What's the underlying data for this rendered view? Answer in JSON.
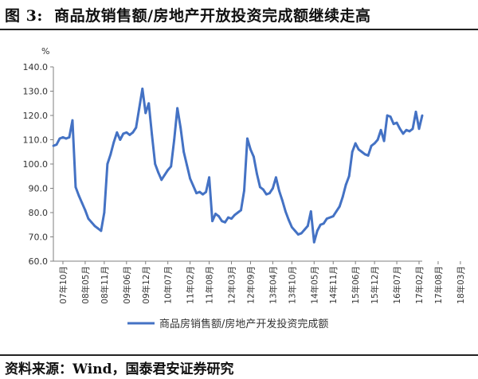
{
  "header": {
    "figure_label": "图 3:",
    "title": "商品放销售额/房地产开放投资完成额继续走高"
  },
  "footer": {
    "source": "资料来源：Wind，国泰君安证券研究"
  },
  "colors": {
    "series": "#4472C4",
    "axis": "#7f7f7f"
  },
  "chart_data": {
    "type": "line",
    "title": "",
    "ylabel": "%",
    "xlabel": "",
    "ylim": [
      60,
      140
    ],
    "yticks": [
      60,
      70,
      80,
      90,
      100,
      110,
      120,
      130,
      140
    ],
    "ytick_labels": [
      "60.0",
      "70.0",
      "80.0",
      "90.0",
      "100.0",
      "110.0",
      "120.0",
      "130.0",
      "140.0"
    ],
    "x_start": "2007-07",
    "xtick_labels": [
      "07年10月",
      "08年05月",
      "08年11月",
      "09年06月",
      "09年12月",
      "10年07月",
      "11年02月",
      "11年08月",
      "12年03月",
      "12年09月",
      "13年04月",
      "13年10月",
      "14年05月",
      "14年11月",
      "15年06月",
      "15年12月",
      "16年07月",
      "17年02月",
      "17年08月",
      "18年03月"
    ],
    "xtick_months": [
      "2007-10",
      "2008-05",
      "2008-11",
      "2009-06",
      "2009-12",
      "2010-07",
      "2011-02",
      "2011-08",
      "2012-03",
      "2012-09",
      "2013-04",
      "2013-10",
      "2014-05",
      "2014-11",
      "2015-06",
      "2015-12",
      "2016-07",
      "2017-02",
      "2017-08",
      "2018-03"
    ],
    "legend_position": "bottom",
    "grid": false,
    "series": [
      {
        "name": "商品房销售额/房地产开发投资完成额",
        "values": [
          107.5,
          108.0,
          110.5,
          111.0,
          110.5,
          111.0,
          118.0,
          90.5,
          87.0,
          84.0,
          81.0,
          77.5,
          76.0,
          74.5,
          73.5,
          72.5,
          80.0,
          100.0,
          104.0,
          109.0,
          113.0,
          110.0,
          112.5,
          113.0,
          112.0,
          113.0,
          115.0,
          123.0,
          131.0,
          121.0,
          125.0,
          112.0,
          100.0,
          96.5,
          93.5,
          95.5,
          97.5,
          99.0,
          110.0,
          123.0,
          115.0,
          105.0,
          99.5,
          94.0,
          91.0,
          88.0,
          88.5,
          87.5,
          88.5,
          94.5,
          76.5,
          79.5,
          78.5,
          76.5,
          76.0,
          78.0,
          77.5,
          79.0,
          80.0,
          81.0,
          89.0,
          110.5,
          106.0,
          103.0,
          96.0,
          90.5,
          89.5,
          87.5,
          88.0,
          90.0,
          94.5,
          89.0,
          85.0,
          80.5,
          77.0,
          74.0,
          72.5,
          71.0,
          71.5,
          73.0,
          74.5,
          80.5,
          67.8,
          72.5,
          75.0,
          75.5,
          77.5,
          78.0,
          78.5,
          80.5,
          82.5,
          86.5,
          91.5,
          95.0,
          105.0,
          108.5,
          106.0,
          105.0,
          104.0,
          103.5,
          107.5,
          108.5,
          110.0,
          114.0,
          109.5,
          120.0,
          119.5,
          116.5,
          117.0,
          114.5,
          112.5,
          114.0,
          113.5,
          114.5,
          121.5,
          114.5,
          120.0
        ]
      }
    ]
  }
}
